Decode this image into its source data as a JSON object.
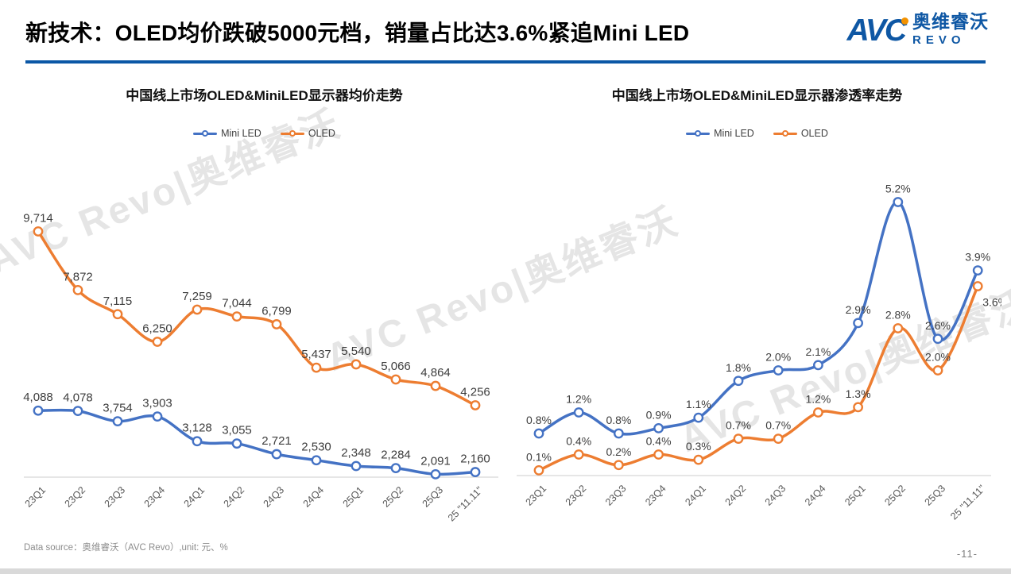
{
  "header": {
    "title": "新技术：OLED均价跌破5000元档，销量占比达3.6%紧追Mini LED",
    "logo": {
      "avc": "AVC",
      "cn": "奥维睿沃",
      "revo": "REVO"
    }
  },
  "watermark": {
    "text": "AVC Revo|奥维睿沃"
  },
  "colors": {
    "mini_led": "#4472C4",
    "oled": "#ED7D31",
    "accent_rule": "#0B57A6"
  },
  "chart_data": [
    {
      "type": "line",
      "title": "中国线上市场OLED&MiniLED显示器均价走势",
      "categories": [
        "23Q1",
        "23Q2",
        "23Q3",
        "23Q4",
        "24Q1",
        "24Q2",
        "24Q3",
        "24Q4",
        "25Q1",
        "25Q2",
        "25Q3",
        "25 \"11.11\""
      ],
      "series": [
        {
          "name": "Mini LED",
          "color": "#4472C4",
          "values": [
            4088,
            4078,
            3754,
            3903,
            3128,
            3055,
            2721,
            2530,
            2348,
            2284,
            2091,
            2160
          ]
        },
        {
          "name": "OLED",
          "color": "#ED7D31",
          "values": [
            9714,
            7872,
            7115,
            6250,
            7259,
            7044,
            6799,
            5437,
            5540,
            5066,
            4864,
            4256
          ]
        }
      ],
      "ylim": [
        2000,
        10000
      ],
      "value_format": "thousands",
      "legend_position": "top",
      "grid": false,
      "xlabel": "",
      "ylabel": ""
    },
    {
      "type": "line",
      "title": "中国线上市场OLED&MiniLED显示器渗透率走势",
      "categories": [
        "23Q1",
        "23Q2",
        "23Q3",
        "23Q4",
        "24Q1",
        "24Q2",
        "24Q3",
        "24Q4",
        "25Q1",
        "25Q2",
        "25Q3",
        "25 \"11.11\""
      ],
      "series": [
        {
          "name": "Mini LED",
          "color": "#4472C4",
          "values": [
            0.8,
            1.2,
            0.8,
            0.9,
            1.1,
            1.8,
            2.0,
            2.1,
            2.9,
            5.2,
            2.6,
            3.9
          ]
        },
        {
          "name": "OLED",
          "color": "#ED7D31",
          "values": [
            0.1,
            0.4,
            0.2,
            0.4,
            0.3,
            0.7,
            0.7,
            1.2,
            1.3,
            2.8,
            2.0,
            3.6
          ]
        }
      ],
      "ylim": [
        0,
        5.6
      ],
      "value_format": "percent",
      "legend_position": "top",
      "grid": false,
      "xlabel": "",
      "ylabel": ""
    }
  ],
  "footer": {
    "source": "Data source：奥维睿沃（AVC Revo）,unit: 元、%",
    "page": "-11-"
  }
}
